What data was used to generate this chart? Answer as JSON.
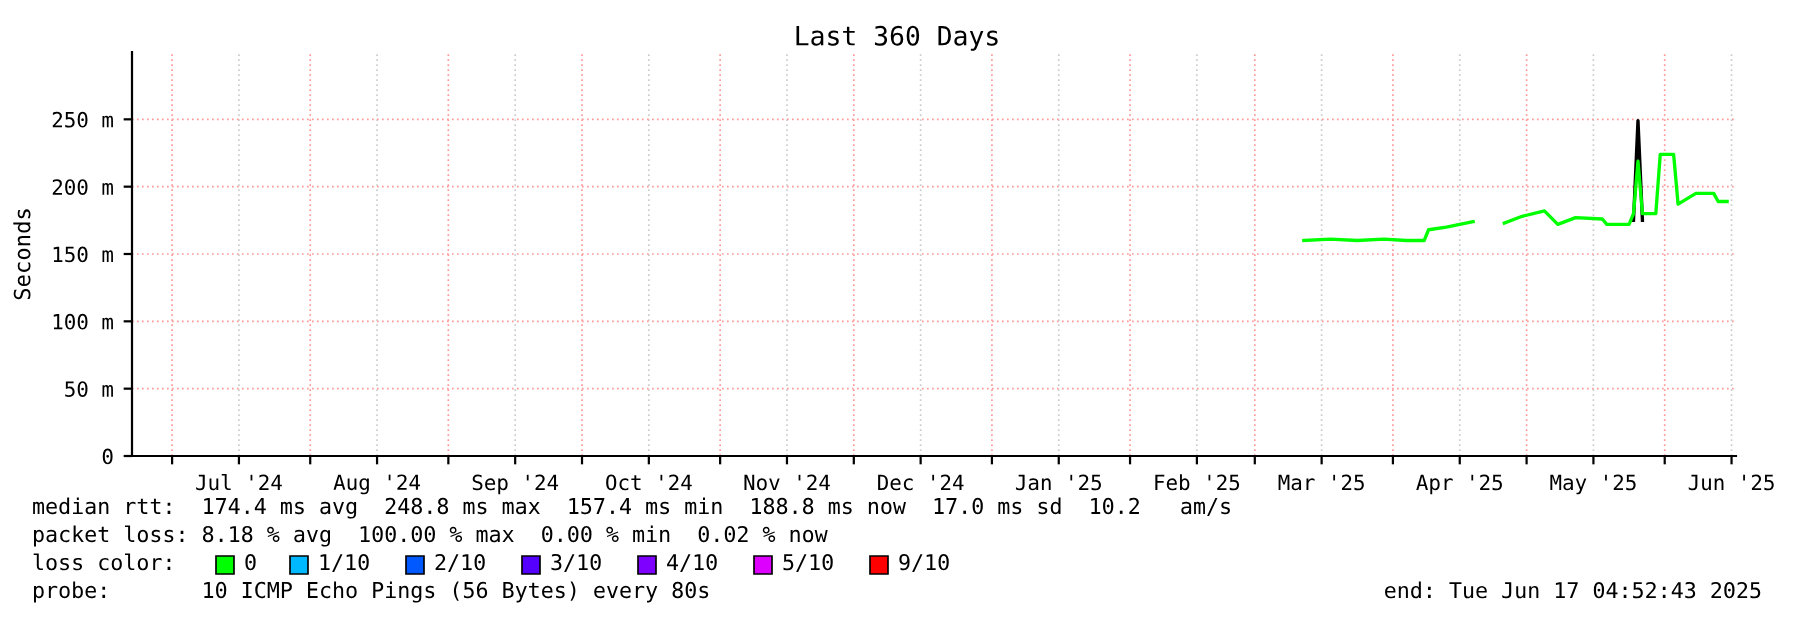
{
  "chart_data": {
    "type": "line",
    "title": "Last 360 Days",
    "ylabel": "Seconds",
    "xlim": [
      "2024-06-22",
      "2025-06-17"
    ],
    "xticks": [
      {
        "value": "2024-07-01",
        "label": null
      },
      {
        "value": "2024-07-16",
        "label": "Jul '24"
      },
      {
        "value": "2024-08-01",
        "label": null
      },
      {
        "value": "2024-08-16",
        "label": "Aug '24"
      },
      {
        "value": "2024-09-01",
        "label": null
      },
      {
        "value": "2024-09-16",
        "label": "Sep '24"
      },
      {
        "value": "2024-10-01",
        "label": null
      },
      {
        "value": "2024-10-16",
        "label": "Oct '24"
      },
      {
        "value": "2024-11-01",
        "label": null
      },
      {
        "value": "2024-11-16",
        "label": "Nov '24"
      },
      {
        "value": "2024-12-01",
        "label": null
      },
      {
        "value": "2024-12-16",
        "label": "Dec '24"
      },
      {
        "value": "2025-01-01",
        "label": null
      },
      {
        "value": "2025-01-16",
        "label": "Jan '25"
      },
      {
        "value": "2025-02-01",
        "label": null
      },
      {
        "value": "2025-02-16",
        "label": "Feb '25"
      },
      {
        "value": "2025-03-01",
        "label": null
      },
      {
        "value": "2025-03-16",
        "label": "Mar '25"
      },
      {
        "value": "2025-04-01",
        "label": null
      },
      {
        "value": "2025-04-16",
        "label": "Apr '25"
      },
      {
        "value": "2025-05-01",
        "label": null
      },
      {
        "value": "2025-05-16",
        "label": "May '25"
      },
      {
        "value": "2025-06-01",
        "label": null
      },
      {
        "value": "2025-06-16",
        "label": "Jun '25"
      }
    ],
    "ylim": [
      0,
      300
    ],
    "yticks": [
      0,
      {
        "value": 50,
        "label": "50 m"
      },
      {
        "value": 100,
        "label": "100 m"
      },
      {
        "value": 150,
        "label": "150 m"
      },
      {
        "value": 200,
        "label": "200 m"
      },
      {
        "value": 250,
        "label": "250 m"
      }
    ],
    "grid": true,
    "marker": "none",
    "line_style": "solid",
    "series": [
      {
        "color": "#000000",
        "x": [
          "2025-05-25",
          "2025-05-26",
          "2025-05-27"
        ],
        "values": [
          175,
          249,
          175
        ]
      },
      {
        "color": "#00ff00",
        "x": [
          "2025-03-12",
          "2025-03-18",
          "2025-03-24",
          "2025-03-30",
          "2025-04-04",
          "2025-04-08",
          "2025-04-09",
          "2025-04-13",
          "2025-04-16",
          "2025-04-19",
          "2025-04-22",
          "2025-04-26",
          "2025-04-30",
          "2025-05-05",
          "2025-05-08",
          "2025-05-12",
          "2025-05-18",
          "2025-05-19",
          "2025-05-24",
          "2025-05-25",
          "2025-05-26",
          "2025-05-27",
          "2025-05-30",
          "2025-05-31",
          "2025-06-03",
          "2025-06-04",
          "2025-06-08",
          "2025-06-12",
          "2025-06-13",
          "2025-06-15"
        ],
        "values": [
          160,
          161,
          160,
          161,
          160,
          160,
          168,
          170,
          172,
          174,
          null,
          173,
          178,
          182,
          172,
          177,
          176,
          172,
          172,
          180,
          219,
          180,
          180,
          224,
          224,
          187,
          195,
          195,
          189,
          189
        ]
      }
    ],
    "annotations": [
      "median rtt:  174.4 ms avg  248.8 ms max  157.4 ms min  188.8 ms now  17.0 ms sd  10.2   am/s",
      "packet loss: 8.18 % avg  100.00 % max  0.00 % min  0.02 % now",
      "loss color:",
      "0",
      "1/10",
      "2/10",
      "3/10",
      "4/10",
      "5/10",
      "9/10",
      "probe:       10 ICMP Echo Pings (56 Bytes) every 80s",
      "end: Tue Jun 17 04:52:43 2025"
    ]
  }
}
